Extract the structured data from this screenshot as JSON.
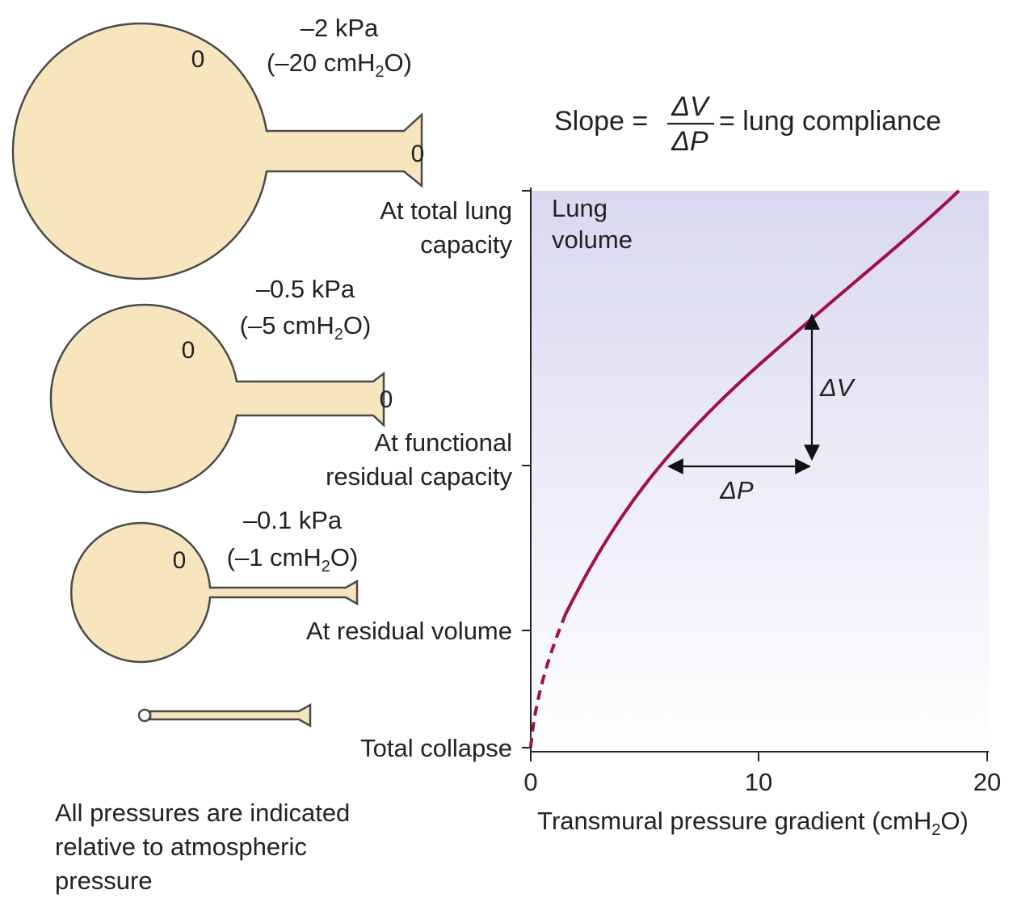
{
  "slope_equation": {
    "prefix": "Slope =",
    "numerator": "ΔV",
    "denominator": "ΔP",
    "suffix": "= lung compliance"
  },
  "lungs": [
    {
      "state": "At total lung capacity",
      "pressure_kpa": "–2 kPa",
      "pressure_cm_prefix": "(–20 cmH",
      "pressure_cm_sub": "2",
      "pressure_cm_suffix": "O)",
      "alveolar_pressure": "0",
      "airway_pressure": "0"
    },
    {
      "state": "At functional residual capacity",
      "pressure_kpa": "–0.5 kPa",
      "pressure_cm_prefix": "(–5 cmH",
      "pressure_cm_sub": "2",
      "pressure_cm_suffix": "O)",
      "alveolar_pressure": "0",
      "airway_pressure": "0"
    },
    {
      "state": "At residual volume",
      "pressure_kpa": "–0.1 kPa",
      "pressure_cm_prefix": "(–1 cmH",
      "pressure_cm_sub": "2",
      "pressure_cm_suffix": "O)",
      "alveolar_pressure": "0"
    }
  ],
  "y_axis": {
    "label_line1": "Lung",
    "label_line2": "volume",
    "tick_labels": {
      "tlc_line1": "At total lung",
      "tlc_line2": "capacity",
      "frc_line1": "At functional",
      "frc_line2": "residual capacity",
      "rv": "At residual volume",
      "collapse": "Total collapse"
    }
  },
  "x_axis": {
    "ticks": [
      "0",
      "10",
      "20"
    ],
    "label_prefix": "Transmural pressure gradient (cmH",
    "label_sub": "2",
    "label_suffix": "O)"
  },
  "annotations": {
    "delta_v": "ΔV",
    "delta_p": "ΔP"
  },
  "footnote": "All pressures are indicated relative to atmospheric pressure",
  "colors": {
    "lung_fill": "#f7e6bd",
    "lung_outline": "#4a4a4a",
    "curve": "#a0104a",
    "plot_shade_top": "#d9d8f0",
    "plot_shade_bottom": "#ffffff"
  }
}
